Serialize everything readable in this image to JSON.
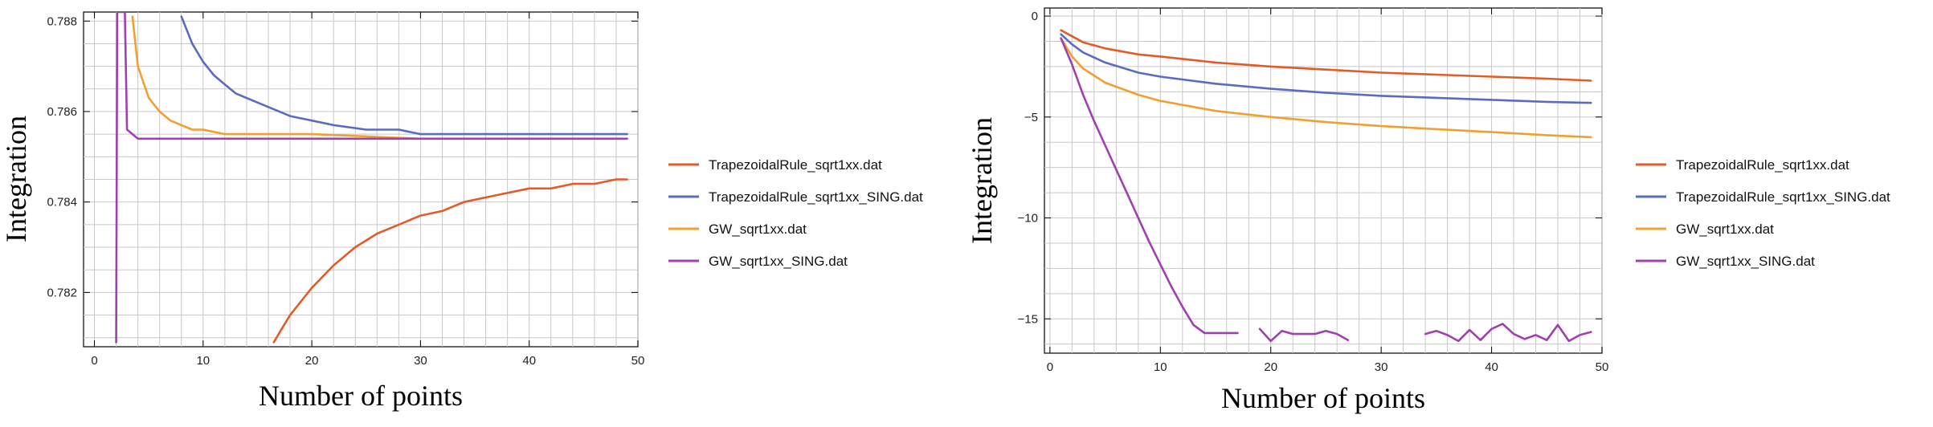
{
  "chart_data": [
    {
      "type": "line",
      "title": "",
      "xlabel": "Number of points",
      "ylabel": "Integration",
      "xlim": [
        -1,
        50
      ],
      "ylim": [
        0.7808,
        0.7882
      ],
      "xticks": [
        0,
        10,
        20,
        30,
        40,
        50
      ],
      "yticks": [
        0.782,
        0.784,
        0.786,
        0.788
      ],
      "ytick_labels": [
        "0.782",
        "0.784",
        "0.786",
        "0.788"
      ],
      "grid": true,
      "legend_position": "right",
      "series": [
        {
          "name": "TrapezoidalRule_sqrt1xx.dat",
          "color": "#e05c2a",
          "x": [
            16.5,
            17,
            18,
            19,
            20,
            22,
            24,
            26,
            28,
            30,
            32,
            34,
            36,
            38,
            40,
            42,
            44,
            46,
            48,
            49
          ],
          "y": [
            0.7809,
            0.7811,
            0.7815,
            0.7818,
            0.7821,
            0.7826,
            0.783,
            0.7833,
            0.7835,
            0.7837,
            0.7838,
            0.784,
            0.7841,
            0.7842,
            0.7843,
            0.7843,
            0.7844,
            0.7844,
            0.7845,
            0.7845
          ]
        },
        {
          "name": "TrapezoidalRule_sqrt1xx_SING.dat",
          "color": "#5b6bc0",
          "x": [
            8,
            9,
            10,
            11,
            12,
            13,
            14,
            16,
            18,
            20,
            22,
            25,
            28,
            30,
            35,
            40,
            45,
            49
          ],
          "y": [
            0.7881,
            0.7875,
            0.7871,
            0.7868,
            0.7866,
            0.7864,
            0.7863,
            0.7861,
            0.7859,
            0.7858,
            0.7857,
            0.7856,
            0.7856,
            0.7855,
            0.7855,
            0.7855,
            0.7855,
            0.7855
          ]
        },
        {
          "name": "GW_sqrt1xx.dat",
          "color": "#f0a030",
          "x": [
            3.5,
            4,
            5,
            6,
            7,
            8,
            9,
            10,
            12,
            15,
            20,
            30,
            40,
            49
          ],
          "y": [
            0.7881,
            0.787,
            0.7863,
            0.786,
            0.7858,
            0.7857,
            0.7856,
            0.7856,
            0.7855,
            0.7855,
            0.7855,
            0.7854,
            0.7854,
            0.7854
          ],
          "approx_flat_value": 0.7854
        },
        {
          "name": "GW_sqrt1xx_SING.dat",
          "color": "#a040b0",
          "x": [
            2,
            2.1,
            2.2,
            2.6,
            2.8,
            3,
            4,
            5,
            10,
            20,
            30,
            40,
            49
          ],
          "y": [
            0.7809,
            0.7882,
            0.7882,
            0.7882,
            0.7882,
            0.7856,
            0.7854,
            0.7854,
            0.7854,
            0.7854,
            0.7854,
            0.7854,
            0.7854
          ]
        }
      ]
    },
    {
      "type": "line",
      "title": "",
      "xlabel": "Number of points",
      "ylabel": "Integration",
      "xlim": [
        -0.5,
        50
      ],
      "ylim": [
        -16.7,
        0.4
      ],
      "xticks": [
        0,
        10,
        20,
        30,
        40,
        50
      ],
      "yticks": [
        0,
        -5,
        -10,
        -15
      ],
      "ytick_labels": [
        "0",
        "−5",
        "−10",
        "−15"
      ],
      "grid": true,
      "legend_position": "right",
      "series": [
        {
          "name": "TrapezoidalRule_sqrt1xx.dat",
          "color": "#e05c2a",
          "x": [
            1,
            2,
            3,
            5,
            8,
            10,
            15,
            20,
            25,
            30,
            35,
            40,
            45,
            49
          ],
          "y": [
            -0.7,
            -1.0,
            -1.3,
            -1.6,
            -1.9,
            -2.0,
            -2.3,
            -2.5,
            -2.65,
            -2.8,
            -2.9,
            -3.0,
            -3.1,
            -3.2
          ]
        },
        {
          "name": "TrapezoidalRule_sqrt1xx_SING.dat",
          "color": "#5b6bc0",
          "x": [
            1,
            2,
            3,
            5,
            8,
            10,
            15,
            20,
            25,
            30,
            35,
            40,
            45,
            49
          ],
          "y": [
            -0.9,
            -1.4,
            -1.8,
            -2.3,
            -2.8,
            -3.0,
            -3.35,
            -3.6,
            -3.8,
            -3.95,
            -4.05,
            -4.15,
            -4.25,
            -4.3
          ]
        },
        {
          "name": "GW_sqrt1xx.dat",
          "color": "#f0a030",
          "x": [
            1,
            2,
            3,
            5,
            8,
            10,
            15,
            20,
            25,
            30,
            35,
            40,
            45,
            49
          ],
          "y": [
            -1.1,
            -2.0,
            -2.6,
            -3.3,
            -3.9,
            -4.2,
            -4.7,
            -5.0,
            -5.25,
            -5.45,
            -5.6,
            -5.75,
            -5.9,
            -6.0
          ]
        },
        {
          "name": "GW_sqrt1xx_SING.dat",
          "color": "#a040b0",
          "segments": [
            {
              "x": [
                1,
                2,
                3,
                4,
                5,
                6,
                7,
                8,
                9,
                10,
                11,
                12,
                13,
                14,
                15,
                16,
                17
              ],
              "y": [
                -1.1,
                -2.4,
                -3.9,
                -5.2,
                -6.4,
                -7.6,
                -8.8,
                -10.0,
                -11.2,
                -12.3,
                -13.4,
                -14.4,
                -15.3,
                -15.7,
                -15.7,
                -15.7,
                -15.7
              ]
            },
            {
              "x": [
                19,
                20,
                21,
                22,
                23,
                24,
                25,
                26,
                27
              ],
              "y": [
                -15.5,
                -16.1,
                -15.6,
                -15.75,
                -15.75,
                -15.75,
                -15.6,
                -15.75,
                -16.05
              ]
            },
            {
              "x": [
                34,
                35,
                36,
                37,
                38,
                39,
                40,
                41,
                42,
                43,
                44,
                45,
                46,
                47,
                48,
                49
              ],
              "y": [
                -15.75,
                -15.6,
                -15.8,
                -16.1,
                -15.55,
                -16.05,
                -15.5,
                -15.25,
                -15.75,
                -16.0,
                -15.8,
                -16.05,
                -15.3,
                -16.1,
                -15.8,
                -15.65
              ]
            }
          ]
        }
      ]
    }
  ]
}
